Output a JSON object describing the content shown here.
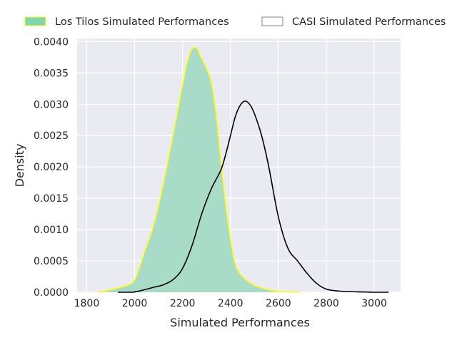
{
  "chart_data": {
    "type": "area",
    "title": "",
    "xlabel": "Simulated Performances",
    "ylabel": "Density",
    "xlim": [
      1760,
      3110
    ],
    "ylim": [
      0,
      0.00405
    ],
    "grid": true,
    "legend_position": "top (above plot, horizontal)",
    "x_ticks": [
      1800,
      2000,
      2200,
      2400,
      2600,
      2800,
      3000
    ],
    "y_ticks": [
      0,
      0.0005,
      0.001,
      0.0015,
      0.002,
      0.0025,
      0.003,
      0.0035,
      0.004
    ],
    "x_tick_labels": [
      "1800",
      "2000",
      "2200",
      "2400",
      "2600",
      "2800",
      "3000"
    ],
    "y_tick_labels": [
      "0.0000",
      "0.0005",
      "0.0010",
      "0.0015",
      "0.0020",
      "0.0025",
      "0.0030",
      "0.0035",
      "0.0040"
    ],
    "series": [
      {
        "name": "Los Tilos Simulated Performances",
        "style": "filled",
        "fill_color": "#a8dcc8",
        "legend_fill_color": "#7fd6b0",
        "line_color": "#ffff00",
        "x": [
          1850,
          1900,
          1950,
          1990,
          2010,
          2040,
          2080,
          2120,
          2160,
          2190,
          2215,
          2235,
          2250,
          2262,
          2280,
          2300,
          2320,
          2340,
          2360,
          2380,
          2400,
          2420,
          2450,
          2500,
          2560,
          2600,
          2640,
          2690
        ],
        "values": [
          0,
          4e-05,
          9e-05,
          0.00015,
          0.00028,
          0.00063,
          0.00108,
          0.00173,
          0.0025,
          0.0031,
          0.0036,
          0.00385,
          0.00391,
          0.00388,
          0.00373,
          0.00357,
          0.00335,
          0.00285,
          0.0021,
          0.0014,
          0.00085,
          0.00045,
          0.00025,
          0.00011,
          4e-05,
          1e-05,
          5e-06,
          0
        ]
      },
      {
        "name": "CASI Simulated Performances",
        "style": "line",
        "line_color": "#000000",
        "legend_fill_color": "#ffffff",
        "legend_edge_color": "#808080",
        "x": [
          1930,
          1990,
          2030,
          2080,
          2120,
          2160,
          2200,
          2240,
          2280,
          2320,
          2360,
          2380,
          2400,
          2420,
          2440,
          2460,
          2480,
          2500,
          2530,
          2560,
          2600,
          2640,
          2680,
          2720,
          2760,
          2800,
          2850,
          2900,
          2950,
          3000,
          3060
        ],
        "values": [
          0,
          0,
          3e-05,
          8e-05,
          0.00012,
          0.0002,
          0.00038,
          0.00075,
          0.00125,
          0.00165,
          0.00195,
          0.0022,
          0.0025,
          0.0028,
          0.00298,
          0.00305,
          0.003,
          0.00285,
          0.0025,
          0.002,
          0.0012,
          0.0007,
          0.0005,
          0.0003,
          0.00014,
          5e-05,
          2e-05,
          1e-05,
          5e-06,
          0,
          0
        ]
      }
    ]
  }
}
